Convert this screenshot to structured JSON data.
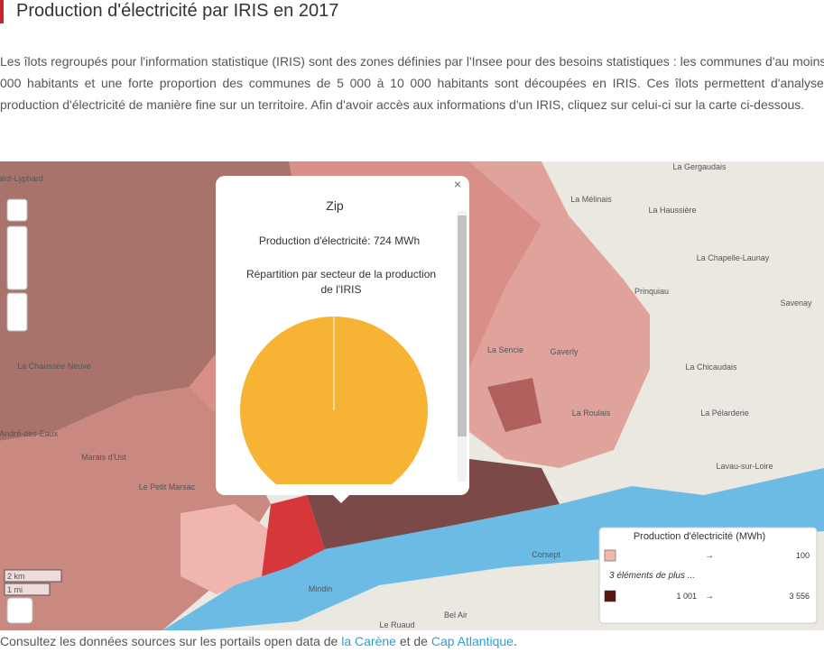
{
  "header": {
    "title": "Production d'électricité par IRIS en 2017"
  },
  "intro": "Les îlots regroupés pour l'information statistique (IRIS) sont des zones définies par l'Insee pour des besoins statistiques : les communes d'au moins 10 000 habitants et une forte proportion des communes de 5 000 à 10 000 habitants sont découpées en IRIS. Ces îlots permettent d'analyser la production d'électricité de manière fine sur un territoire. Afin d'avoir accès aux informations d'un IRIS, cliquez sur celui-ci sur la carte ci-dessous.",
  "map": {
    "places": [
      "La Gergaudais",
      "La Mélinais",
      "La Haussière",
      "La Chapelle-Launay",
      "Prinquiau",
      "Savenay",
      "Saint-Lyphard",
      "La Chaussée Neuve",
      "Saint-André-des-Eaux",
      "Marais d'Ust",
      "Le Petit Marsac",
      "La Sencie",
      "Gaverly",
      "La Roulais",
      "La Chicaudais",
      "La Pélarderie",
      "Lavau-sur-Loire",
      "Corsept",
      "Mindin",
      "Bel Air",
      "Le Ruaud"
    ],
    "scale": [
      "2 km",
      "1 mi"
    ],
    "popup": {
      "title": "Zip",
      "production": "Production d'électricité: 724 MWh",
      "breakdown": "Répartition par secteur de la production de l'IRIS",
      "pie": {
        "values": [
          100
        ],
        "color": "#f7b334"
      }
    },
    "legend": {
      "title": "Production d'électricité (MWh)",
      "more": "3 éléments de plus ...",
      "items": [
        {
          "from": "",
          "arrow": "→",
          "to": "100",
          "color": "#f6b7ae"
        },
        {
          "from": "1 001",
          "arrow": "→",
          "to": "3 556",
          "color": "#5a1412"
        }
      ]
    }
  },
  "footer": {
    "before": "Consultez les données sources sur les portails open data de ",
    "link1": "la Carène",
    "middle": " et de ",
    "link2": "Cap Atlantique",
    "after": "."
  }
}
